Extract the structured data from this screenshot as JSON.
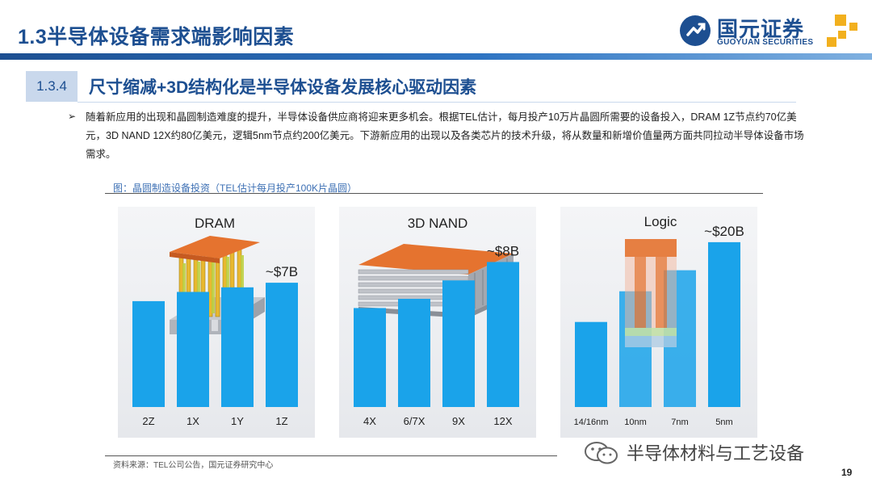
{
  "header": {
    "title": "1.3半导体设备需求端影响因素",
    "logo_cn": "国元证券",
    "logo_en": "GUOYUAN SECURITIES"
  },
  "section": {
    "number": "1.3.4",
    "title": "尺寸缩减+3D结构化是半导体设备发展核心驱动因素"
  },
  "body": {
    "bullet": "➢",
    "paragraph": "随着新应用的出现和晶圆制造难度的提升，半导体设备供应商将迎来更多机会。根据TEL估计，每月投产10万片晶圆所需要的设备投入，DRAM 1Z节点约70亿美元，3D NAND 12X约80亿美元，逻辑5nm节点约200亿美元。下游新应用的出现以及各类芯片的技术升级，将从数量和新增价值量两方面共同拉动半导体设备市场需求。"
  },
  "figure": {
    "title": "图：晶圆制造设备投资（TEL估计每月投产100K片晶圆）",
    "source": "资料来源：TEL公司公告，国元证券研究中心"
  },
  "chart_data": [
    {
      "type": "bar",
      "title": "DRAM",
      "categories": [
        "2Z",
        "1X",
        "1Y",
        "1Z"
      ],
      "values": [
        4.6,
        5.0,
        5.2,
        5.4
      ],
      "annotation": "~$7B",
      "ylim": [
        0,
        8
      ]
    },
    {
      "type": "bar",
      "title": "3D NAND",
      "categories": [
        "4X",
        "6/7X",
        "9X",
        "12X"
      ],
      "values": [
        4.3,
        4.7,
        5.5,
        6.3
      ],
      "annotation": "~$8B",
      "ylim": [
        0,
        8
      ]
    },
    {
      "type": "bar",
      "title": "Logic",
      "categories": [
        "14/16nm",
        "10nm",
        "7nm",
        "5nm"
      ],
      "values": [
        9.7,
        13.2,
        15.6,
        18.8
      ],
      "annotation": "~$20B",
      "ylim": [
        0,
        21
      ]
    }
  ],
  "footer": {
    "watermark": "半导体材料与工艺设备",
    "page_number": "19"
  },
  "colors": {
    "brand_blue": "#1d4f91",
    "bar_blue": "#1aa3ea",
    "accent_gold": "#f2b01e"
  }
}
